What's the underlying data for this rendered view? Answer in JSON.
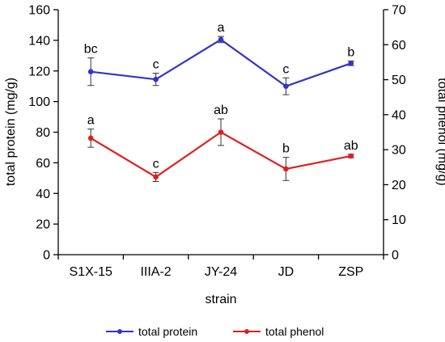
{
  "chart_data": {
    "type": "line",
    "categories": [
      "S1X-15",
      "IIIA-2",
      "JY-24",
      "JD",
      "ZSP"
    ],
    "xlabel": "strain",
    "ylabel": "total protein  (mg/g)",
    "ylabel_right": "total phenol  (mg/g)",
    "ylim": [
      0,
      160
    ],
    "yticks": [
      0,
      20,
      40,
      60,
      80,
      100,
      120,
      140,
      160
    ],
    "ylim_right": [
      0,
      70
    ],
    "yticks_right": [
      0,
      10,
      20,
      30,
      40,
      50,
      60,
      70
    ],
    "grid": false,
    "legend_position": "bottom",
    "series": [
      {
        "name": "total protein",
        "axis": "left",
        "color": "#3333cc",
        "values": [
          119.5,
          114.5,
          140.5,
          110,
          125
        ],
        "errors": [
          9,
          4,
          2,
          5.5,
          1.5
        ],
        "letters": [
          "bc",
          "c",
          "a",
          "c",
          "b"
        ]
      },
      {
        "name": "total phenol",
        "axis": "right",
        "color": "#e02020",
        "values": [
          33.3,
          22.2,
          35,
          24.5,
          28.2
        ],
        "errors": [
          2.6,
          1.3,
          3.8,
          3.3,
          0.5
        ],
        "letters": [
          "a",
          "c",
          "ab",
          "b",
          "ab"
        ]
      }
    ]
  }
}
